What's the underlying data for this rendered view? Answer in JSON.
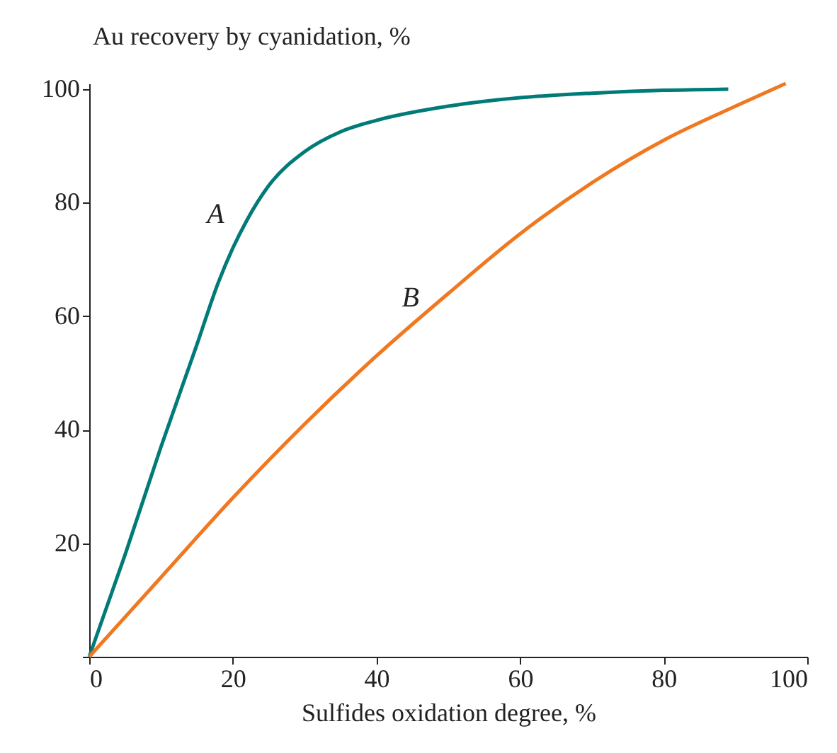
{
  "chart_data": {
    "type": "line",
    "xlabel": "Sulfides oxidation degree, %",
    "ylabel": "Au recovery by cyanidation, %",
    "xlim": [
      0,
      100
    ],
    "ylim": [
      0,
      101
    ],
    "xticks": [
      0,
      20,
      40,
      60,
      80,
      100
    ],
    "yticks": [
      {
        "value": 0,
        "label": null
      },
      20,
      40,
      60,
      80,
      100
    ],
    "grid": false,
    "marker": "none",
    "line_style": "solid",
    "series": [
      {
        "name": "A",
        "color": "#007b78",
        "x": [
          0,
          5,
          10,
          15,
          18,
          20,
          22,
          25,
          30,
          35,
          40,
          50,
          60,
          70,
          80,
          89
        ],
        "values": [
          0,
          18,
          37,
          55,
          66,
          72,
          77,
          83,
          89,
          92.5,
          94.5,
          97,
          98.5,
          99.3,
          99.8,
          100
        ]
      },
      {
        "name": "B",
        "color": "#f07820",
        "x": [
          0,
          10,
          20,
          30,
          40,
          50,
          60,
          70,
          80,
          90,
          97
        ],
        "values": [
          0,
          14,
          28,
          41,
          53,
          64,
          74.5,
          83.5,
          91,
          97,
          101
        ]
      }
    ]
  }
}
